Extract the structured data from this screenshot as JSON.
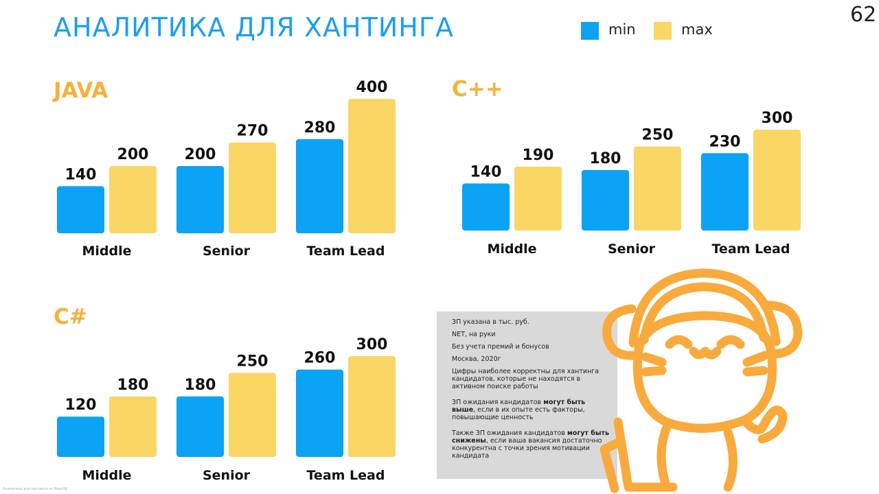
{
  "title": "АНАЛИТИКА ДЛЯ ХАНТИНГА",
  "page_number": "62",
  "legend": [
    {
      "label": "min",
      "color": "#0aa3f5"
    },
    {
      "label": "max",
      "color": "#fad764"
    }
  ],
  "chart_data": [
    {
      "type": "bar",
      "title": "JAVA",
      "categories": [
        "Middle",
        "Senior",
        "Team Lead"
      ],
      "series": [
        {
          "name": "min",
          "values": [
            140,
            200,
            280
          ]
        },
        {
          "name": "max",
          "values": [
            200,
            270,
            400
          ]
        }
      ]
    },
    {
      "type": "bar",
      "title": "C++",
      "categories": [
        "Middle",
        "Senior",
        "Team Lead"
      ],
      "series": [
        {
          "name": "min",
          "values": [
            140,
            180,
            230
          ]
        },
        {
          "name": "max",
          "values": [
            190,
            250,
            300
          ]
        }
      ]
    },
    {
      "type": "bar",
      "title": "C#",
      "categories": [
        "Middle",
        "Senior",
        "Team Lead"
      ],
      "series": [
        {
          "name": "min",
          "values": [
            120,
            180,
            260
          ]
        },
        {
          "name": "max",
          "values": [
            180,
            250,
            300
          ]
        }
      ]
    }
  ],
  "notes": {
    "line1": "ЗП указана в тыс. руб.",
    "line2": "NET, на руки",
    "line3": "Без учета премий и бонусов",
    "line4": "Москва, 2020г",
    "line5": "Цифры наиболее корректны для хантинга кандидатов, которые не находятся в активном поиске работы",
    "line6_pre": "ЗП ожидания кандидатов ",
    "line6_bold": "могут быть выше",
    "line6_post": ", если в их опыте есть факторы, повышающие ценность",
    "line7_pre": "Также ЗП ожидания кандидатов ",
    "line7_bold": "могут быть снижены",
    "line7_post": ", если ваша вакансия достаточно конкурентна с точки зрения мотивации кандидата"
  },
  "footer": "Аналитика для хантинга от New.HR",
  "colors": {
    "title": "#1b9ef0",
    "chart_title": "#f5b13d",
    "min": "#0aa3f5",
    "max": "#fad764",
    "mascot": "#f8aa3c"
  }
}
